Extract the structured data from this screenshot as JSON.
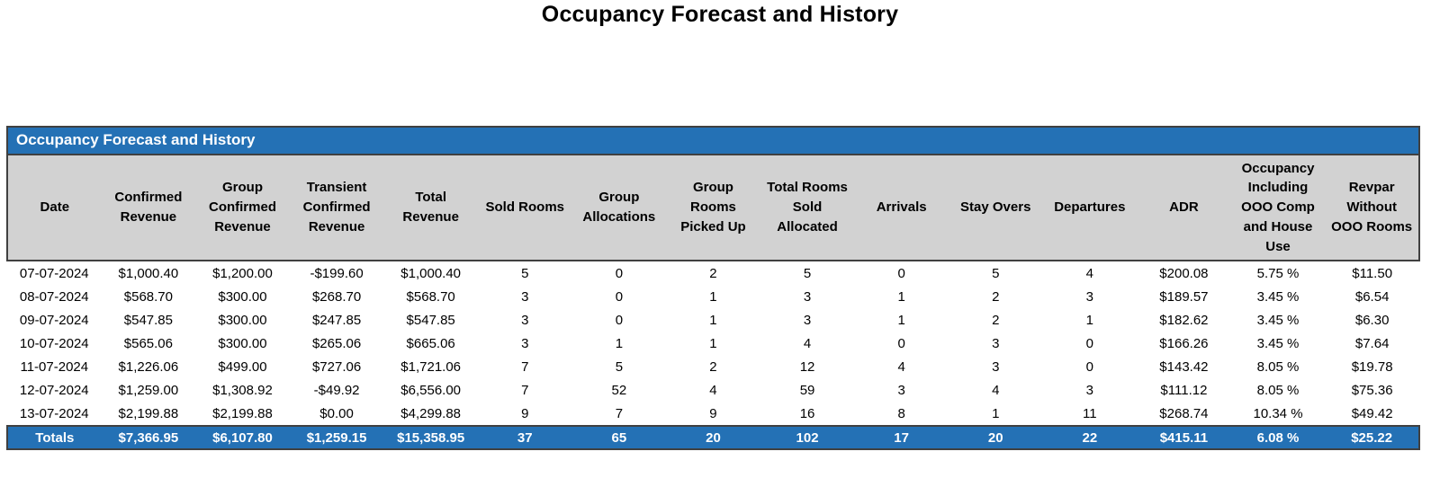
{
  "page_title": "Occupancy Forecast and History",
  "colors": {
    "accent_blue": "#2471B5",
    "header_gray": "#D2D2D2",
    "border_dark": "#404040",
    "totals_text": "#FFFFFF"
  },
  "report": {
    "title": "Occupancy Forecast and History",
    "columns": [
      "Date",
      "Confirmed Revenue",
      "Group Confirmed Revenue",
      "Transient Confirmed Revenue",
      "Total Revenue",
      "Sold Rooms",
      "Group Allocations",
      "Group Rooms Picked Up",
      "Total Rooms Sold Allocated",
      "Arrivals",
      "Stay Overs",
      "Departures",
      "ADR",
      "Occupancy Including OOO Comp and House Use",
      "Revpar Without OOO Rooms"
    ],
    "rows": [
      [
        "07-07-2024",
        "$1,000.40",
        "$1,200.00",
        "-$199.60",
        "$1,000.40",
        "5",
        "0",
        "2",
        "5",
        "0",
        "5",
        "4",
        "$200.08",
        "5.75 %",
        "$11.50"
      ],
      [
        "08-07-2024",
        "$568.70",
        "$300.00",
        "$268.70",
        "$568.70",
        "3",
        "0",
        "1",
        "3",
        "1",
        "2",
        "3",
        "$189.57",
        "3.45 %",
        "$6.54"
      ],
      [
        "09-07-2024",
        "$547.85",
        "$300.00",
        "$247.85",
        "$547.85",
        "3",
        "0",
        "1",
        "3",
        "1",
        "2",
        "1",
        "$182.62",
        "3.45 %",
        "$6.30"
      ],
      [
        "10-07-2024",
        "$565.06",
        "$300.00",
        "$265.06",
        "$665.06",
        "3",
        "1",
        "1",
        "4",
        "0",
        "3",
        "0",
        "$166.26",
        "3.45 %",
        "$7.64"
      ],
      [
        "11-07-2024",
        "$1,226.06",
        "$499.00",
        "$727.06",
        "$1,721.06",
        "7",
        "5",
        "2",
        "12",
        "4",
        "3",
        "0",
        "$143.42",
        "8.05 %",
        "$19.78"
      ],
      [
        "12-07-2024",
        "$1,259.00",
        "$1,308.92",
        "-$49.92",
        "$6,556.00",
        "7",
        "52",
        "4",
        "59",
        "3",
        "4",
        "3",
        "$111.12",
        "8.05 %",
        "$75.36"
      ],
      [
        "13-07-2024",
        "$2,199.88",
        "$2,199.88",
        "$0.00",
        "$4,299.88",
        "9",
        "7",
        "9",
        "16",
        "8",
        "1",
        "11",
        "$268.74",
        "10.34 %",
        "$49.42"
      ]
    ],
    "totals": [
      "Totals",
      "$7,366.95",
      "$6,107.80",
      "$1,259.15",
      "$15,358.95",
      "37",
      "65",
      "20",
      "102",
      "17",
      "20",
      "22",
      "$415.11",
      "6.08 %",
      "$25.22"
    ]
  },
  "chart_data": {
    "type": "table",
    "title": "Occupancy Forecast and History"
  }
}
